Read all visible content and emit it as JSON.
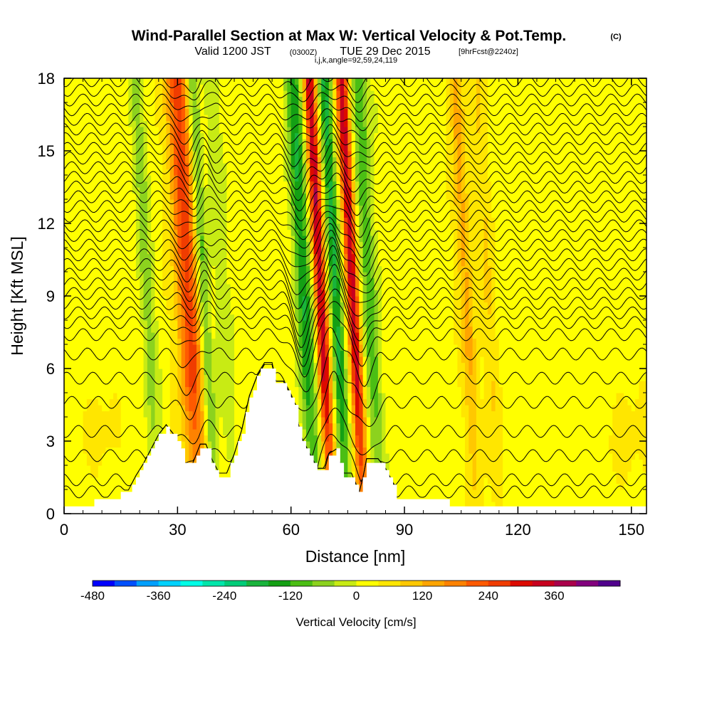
{
  "title": {
    "main": "Wind-Parallel Section at Max W: Vertical Velocity & Pot.Temp.",
    "copyright": "(C)",
    "valid_a": "Valid 1200 JST",
    "valid_utc": "(0300Z)",
    "valid_b": "TUE 29 Dec 2015",
    "forecast": "[9hrFcst@2240z]",
    "indices": "i,j,k,angle=92,59,24,119"
  },
  "chart_data": {
    "type": "heatmap",
    "xlabel": "Distance [nm]",
    "ylabel": "Height [Kft MSL]",
    "xlim": [
      0,
      154
    ],
    "ylim": [
      0,
      18
    ],
    "xticks": [
      0,
      30,
      60,
      90,
      120,
      150
    ],
    "yticks": [
      0,
      3,
      6,
      9,
      12,
      15,
      18
    ],
    "terrain_kft": [
      [
        0,
        0.3
      ],
      [
        7,
        0.3
      ],
      [
        7.5,
        0.6
      ],
      [
        14,
        0.6
      ],
      [
        14.5,
        0.9
      ],
      [
        17,
        0.9
      ],
      [
        19,
        1.5
      ],
      [
        21,
        2.0
      ],
      [
        23,
        2.6
      ],
      [
        25,
        3.2
      ],
      [
        27,
        3.6
      ],
      [
        29,
        3.2
      ],
      [
        31,
        2.6
      ],
      [
        32,
        2.0
      ],
      [
        34,
        2.0
      ],
      [
        36,
        2.8
      ],
      [
        37.5,
        2.8
      ],
      [
        39,
        2.2
      ],
      [
        41,
        1.6
      ],
      [
        43,
        1.6
      ],
      [
        45,
        2.4
      ],
      [
        47,
        3.4
      ],
      [
        49,
        4.8
      ],
      [
        51,
        5.6
      ],
      [
        53,
        6.1
      ],
      [
        55,
        6.1
      ],
      [
        56,
        5.4
      ],
      [
        58,
        5.4
      ],
      [
        60,
        4.8
      ],
      [
        61,
        4.4
      ],
      [
        62,
        3.6
      ],
      [
        63,
        3.0
      ],
      [
        65,
        2.4
      ],
      [
        67,
        1.8
      ],
      [
        69,
        1.8
      ],
      [
        70,
        2.4
      ],
      [
        72,
        2.6
      ],
      [
        73,
        2.0
      ],
      [
        74,
        1.6
      ],
      [
        76,
        1.6
      ],
      [
        77,
        1.2
      ],
      [
        78,
        0.8
      ],
      [
        79,
        1.4
      ],
      [
        80,
        2.2
      ],
      [
        83,
        2.2
      ],
      [
        85,
        1.8
      ],
      [
        87,
        1.2
      ],
      [
        88,
        0.6
      ],
      [
        101,
        0.6
      ],
      [
        102,
        0.3
      ],
      [
        154,
        0.3
      ]
    ],
    "w_features": [
      {
        "center": 32.5,
        "width": 3.5,
        "peak": 230
      },
      {
        "center": 36.5,
        "width": 1.6,
        "peak": -140
      },
      {
        "center": 21.5,
        "width": 2.0,
        "peak": -70
      },
      {
        "center": 41,
        "width": 2.0,
        "peak": -50
      },
      {
        "center": 67.5,
        "width": 1.6,
        "peak": 330
      },
      {
        "center": 76,
        "width": 1.6,
        "peak": 330
      },
      {
        "center": 71.5,
        "width": 1.7,
        "peak": -180
      },
      {
        "center": 63,
        "width": 2.2,
        "peak": -170
      },
      {
        "center": 80.5,
        "width": 2.0,
        "peak": -130
      },
      {
        "center": 106,
        "width": 2.0,
        "peak": 120
      },
      {
        "center": 112,
        "width": 2.0,
        "peak": 70
      }
    ],
    "isentropes_kft": [
      0.9,
      1.4,
      2.4,
      3.4,
      4.6,
      5.6,
      6.6,
      7.4,
      7.9,
      8.3,
      8.7,
      9.1,
      9.5,
      9.9,
      10.3,
      10.7,
      11.1,
      11.5,
      11.9,
      12.3,
      12.7,
      13.1,
      13.5,
      13.9,
      14.3,
      14.7,
      15.1,
      15.5,
      15.9,
      16.3,
      16.7,
      17.1,
      17.5,
      17.9
    ],
    "colorbar": {
      "label": "Vertical Velocity [cm/s]",
      "ticks": [
        "-480",
        "-360",
        "-240",
        "-120",
        "0",
        "120",
        "240",
        "360"
      ],
      "colors": [
        "#0000ff",
        "#0050ff",
        "#00a0ff",
        "#00d2ff",
        "#00ffe6",
        "#00e6aa",
        "#00cc78",
        "#19b43c",
        "#14a014",
        "#4bbe14",
        "#8cd21e",
        "#c8eb14",
        "#ffff00",
        "#ffe600",
        "#ffc800",
        "#ffa500",
        "#ff8200",
        "#ff5a00",
        "#f03c00",
        "#dc0a00",
        "#c8001e",
        "#aa004b",
        "#82007d",
        "#50008c"
      ]
    }
  }
}
